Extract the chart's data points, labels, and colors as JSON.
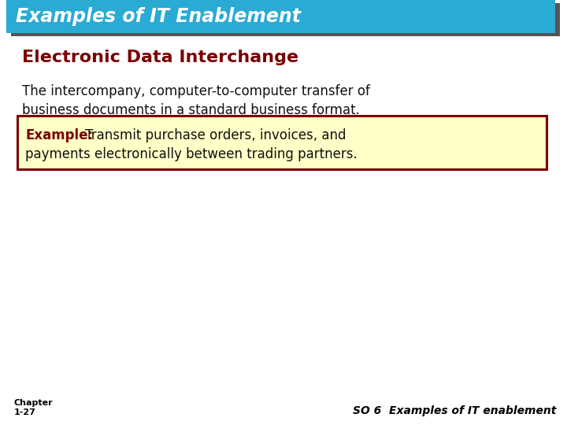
{
  "title": "Examples of IT Enablement",
  "title_bg_color": "#29ABD4",
  "title_shadow_color": "#555555",
  "title_text_color": "#FFFFFF",
  "subtitle": "Electronic Data Interchange",
  "subtitle_color": "#7B0000",
  "body_line1": "The intercompany, computer-to-computer transfer of",
  "body_line2": "business documents in a standard business format.",
  "body_text_color": "#111111",
  "example_label": "Example:",
  "example_label_color": "#7B0000",
  "example_line1": "  Transmit purchase orders, invoices, and",
  "example_line2": "payments electronically between trading partners.",
  "example_box_bg": "#FFFFC8",
  "example_box_border": "#7B0000",
  "footer_left_line1": "Chapter",
  "footer_left_line2": "1-27",
  "footer_right": "SO 6  Examples of IT enablement",
  "footer_color": "#000000",
  "bg_color": "#FFFFFF"
}
